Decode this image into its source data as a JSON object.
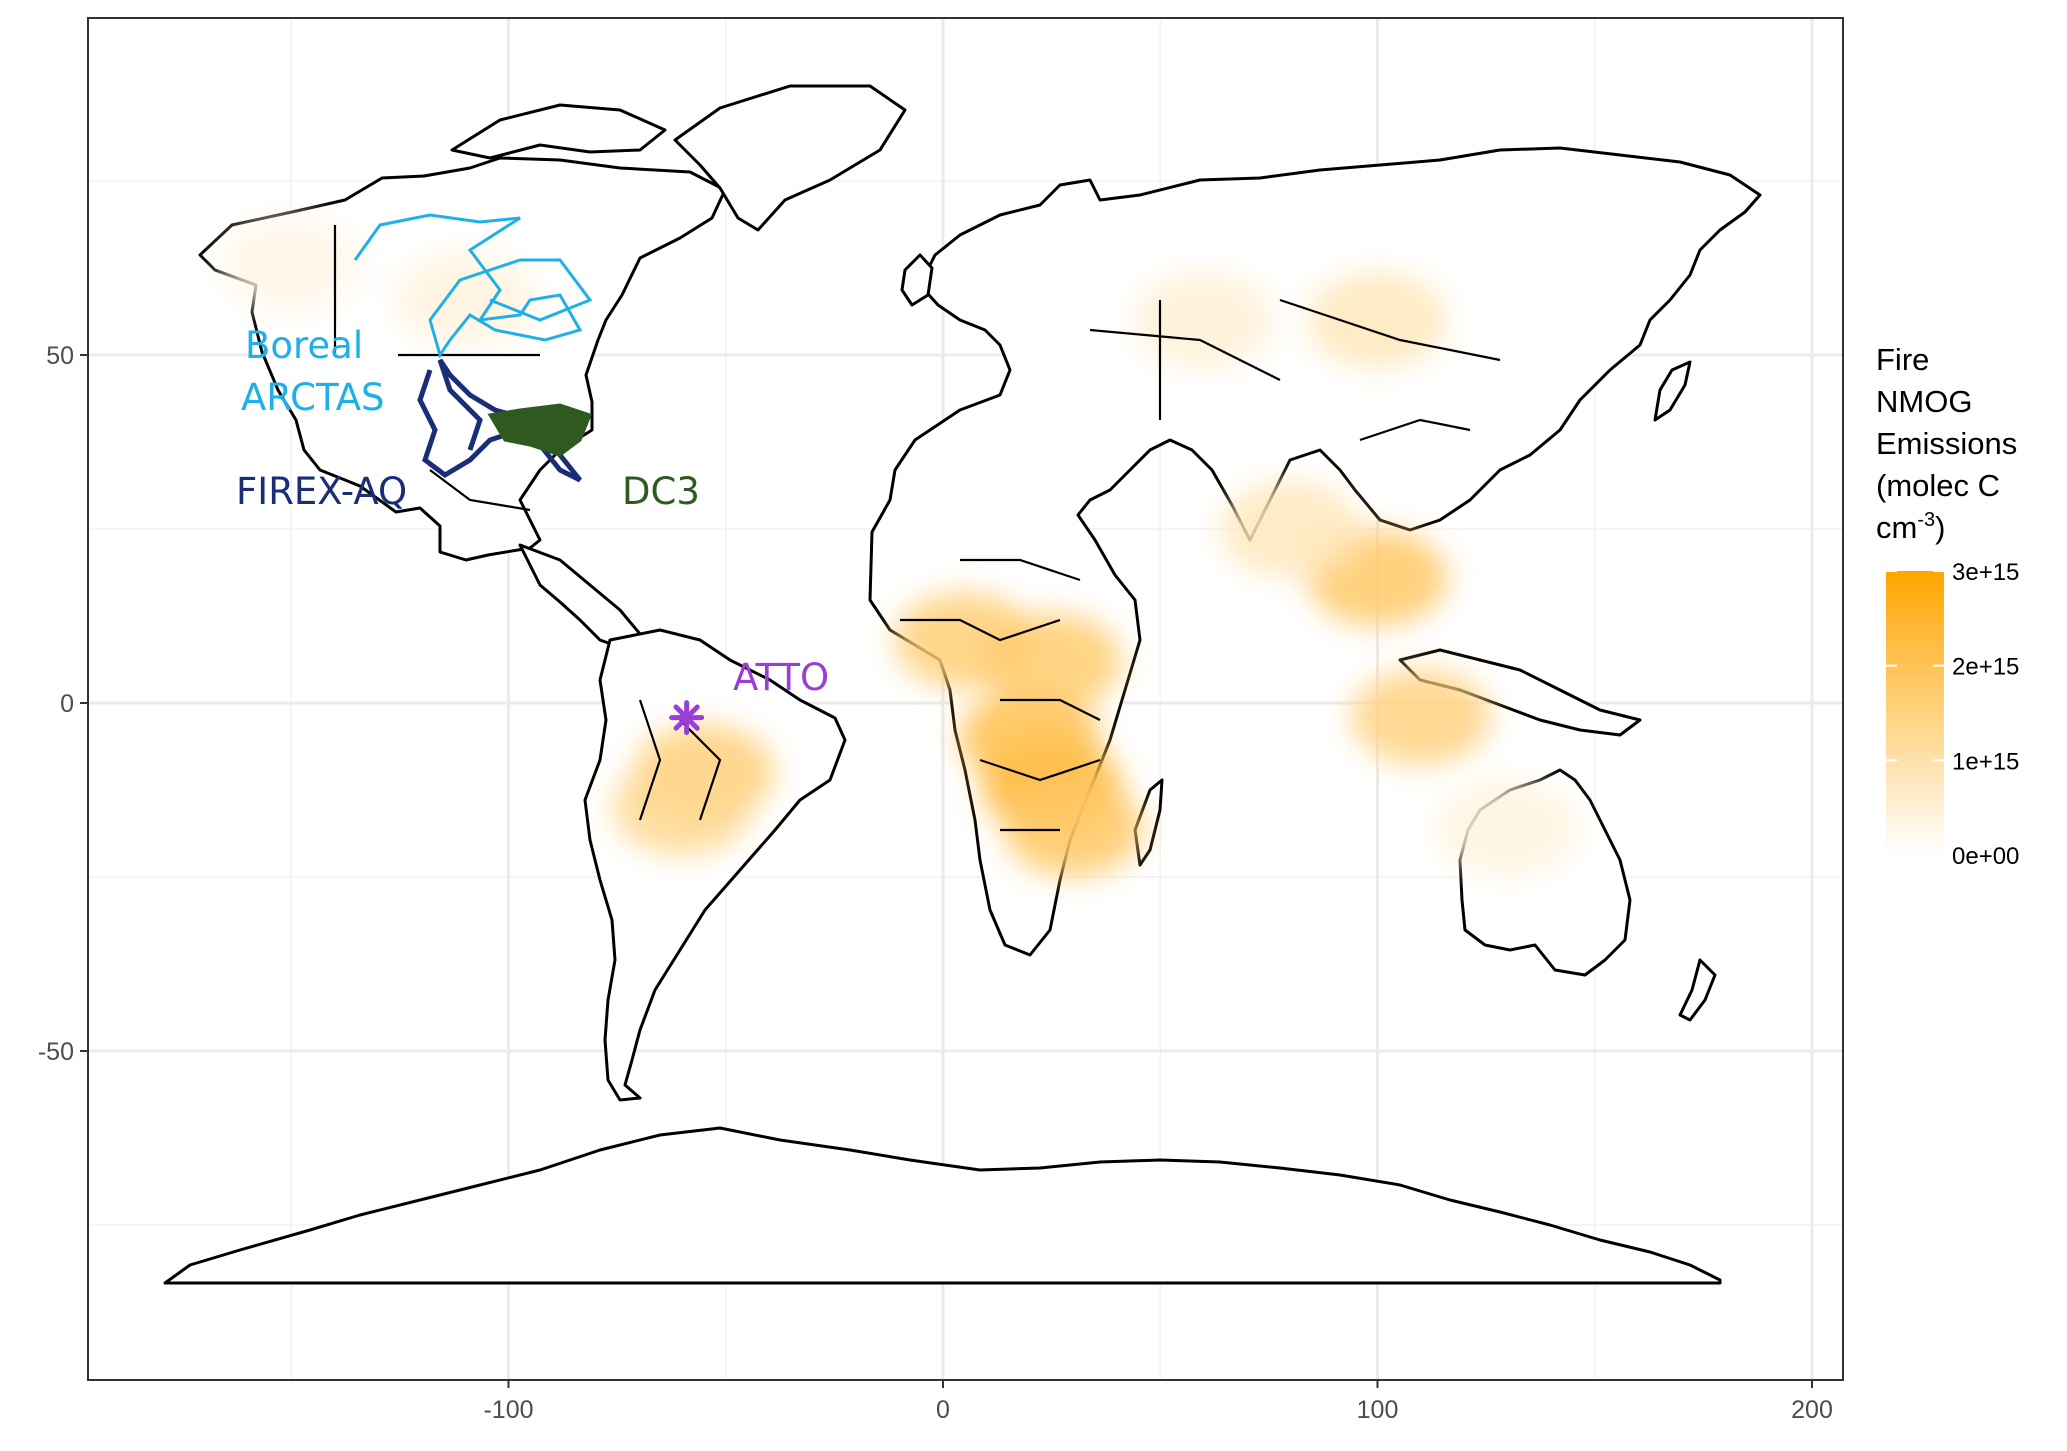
{
  "map": {
    "x_ticks": [
      -100,
      0,
      100,
      200
    ],
    "y_ticks": [
      50,
      0,
      -50
    ],
    "x_tick_labels": [
      "-100",
      "0",
      "100",
      "200"
    ],
    "y_tick_labels": [
      "50",
      "0",
      "-50"
    ],
    "xlim": [
      -185,
      207
    ],
    "ylim": [
      -92,
      98
    ],
    "grid": true,
    "background": "#ffffff",
    "panel_border": "#333333"
  },
  "campaigns": [
    {
      "id": "boreal",
      "label": "Boreal",
      "color": "#1fb0e8"
    },
    {
      "id": "arctas",
      "label": "ARCTAS",
      "color": "#1fb0e8"
    },
    {
      "id": "firexaq",
      "label": "FIREX-AQ",
      "color": "#1a2e78"
    },
    {
      "id": "dc3",
      "label": "DC3",
      "color": "#2e5a1f"
    },
    {
      "id": "atto",
      "label": "ATTO",
      "color": "#9a3fd6"
    }
  ],
  "atto_site": {
    "lon": -59,
    "lat": -2.1,
    "color": "#9a3fd6"
  },
  "legend": {
    "title_lines": [
      "Fire",
      "NMOG",
      "Emissions",
      "(molec C",
      "cm"
    ],
    "title_superscript": "-3",
    "title_close": ")",
    "ticks": [
      "3e+15",
      "2e+15",
      "1e+15",
      "0e+00"
    ],
    "color_low": "#ffffff",
    "color_high": "#ffa500",
    "value_min": 0,
    "value_max": 3000000000000000.0,
    "tick_values": [
      3000000000000000.0,
      2000000000000000.0,
      1000000000000000.0,
      0
    ]
  },
  "fire_regions": [
    {
      "lon": 25,
      "lat": -12,
      "value": 2400000000000000.0
    },
    {
      "lon": 20,
      "lat": -5,
      "value": 2100000000000000.0
    },
    {
      "lon": 30,
      "lat": -18,
      "value": 1800000000000000.0
    },
    {
      "lon": 5,
      "lat": 9,
      "value": 1600000000000000.0
    },
    {
      "lon": 25,
      "lat": 6,
      "value": 1700000000000000.0
    },
    {
      "lon": -55,
      "lat": -10,
      "value": 1600000000000000.0
    },
    {
      "lon": -60,
      "lat": -15,
      "value": 1300000000000000.0
    },
    {
      "lon": 100,
      "lat": 18,
      "value": 1800000000000000.0
    },
    {
      "lon": 110,
      "lat": -2,
      "value": 1500000000000000.0
    },
    {
      "lon": 100,
      "lat": 55,
      "value": 800000000000000.0
    },
    {
      "lon": 60,
      "lat": 55,
      "value": 500000000000000.0
    },
    {
      "lon": 130,
      "lat": -18,
      "value": 400000000000000.0
    },
    {
      "lon": -110,
      "lat": 58,
      "value": 400000000000000.0
    },
    {
      "lon": -150,
      "lat": 63,
      "value": 300000000000000.0
    },
    {
      "lon": 80,
      "lat": 25,
      "value": 800000000000000.0
    }
  ]
}
